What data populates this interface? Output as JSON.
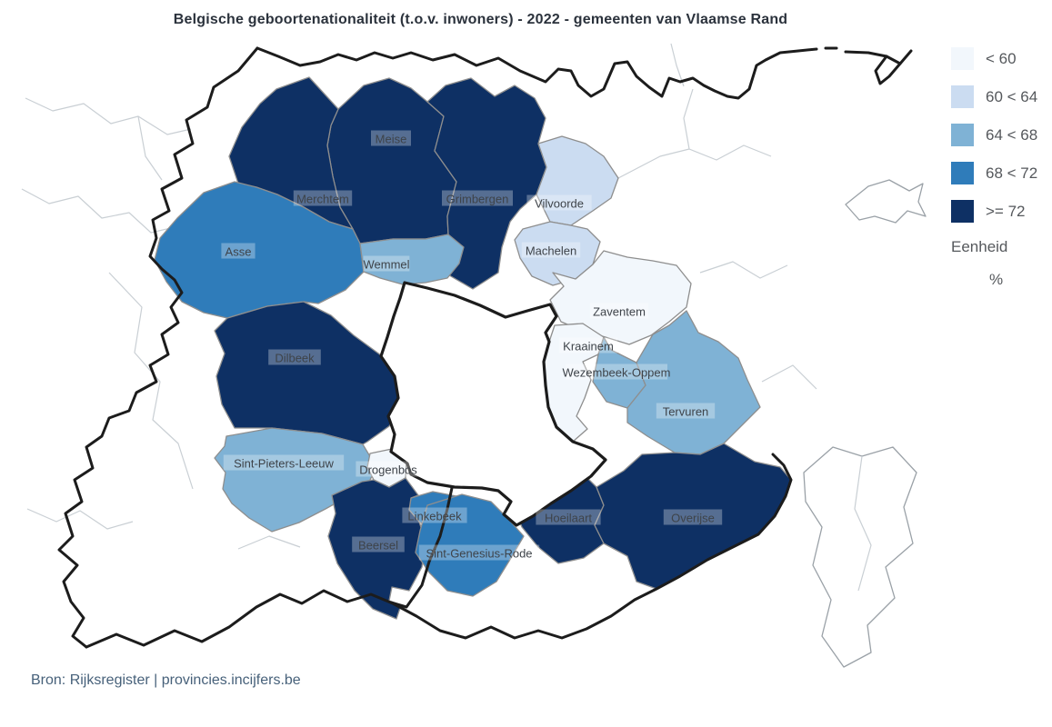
{
  "title": "Belgische geboortenationaliteit (t.o.v. inwoners) - 2022 - gemeenten van Vlaamse Rand",
  "source": "Bron: Rijksregister | provincies.incijfers.be",
  "legend": {
    "unit_label": "Eenheid",
    "unit": "%",
    "classes": [
      {
        "label": "< 60",
        "color": "#f2f7fc"
      },
      {
        "label": "60 < 64",
        "color": "#cbdcf1"
      },
      {
        "label": "64 < 68",
        "color": "#7fb2d5"
      },
      {
        "label": "68 < 72",
        "color": "#2f7cba"
      },
      {
        "label": ">= 72",
        "color": "#0e3064"
      }
    ]
  },
  "chart_data": {
    "type": "choropleth",
    "title": "Belgische geboortenationaliteit (t.o.v. inwoners) - 2022 - gemeenten van Vlaamse Rand",
    "unit": "%",
    "year": "2022",
    "bins": [
      "< 60",
      "60 < 64",
      "64 < 68",
      "68 < 72",
      ">= 72"
    ],
    "legend_position": "top-right",
    "regions": [
      {
        "id": "meise",
        "name": "Meise",
        "class": ">= 72"
      },
      {
        "id": "merchtem",
        "name": "Merchtem",
        "class": ">= 72"
      },
      {
        "id": "grimbergen",
        "name": "Grimbergen",
        "class": ">= 72"
      },
      {
        "id": "vilvoorde",
        "name": "Vilvoorde",
        "class": "60 < 64"
      },
      {
        "id": "machelen",
        "name": "Machelen",
        "class": "60 < 64"
      },
      {
        "id": "asse",
        "name": "Asse",
        "class": "68 < 72"
      },
      {
        "id": "wemmel",
        "name": "Wemmel",
        "class": "64 < 68"
      },
      {
        "id": "zaventem",
        "name": "Zaventem",
        "class": "< 60"
      },
      {
        "id": "kraainem",
        "name": "Kraainem",
        "class": "< 60"
      },
      {
        "id": "wezembeek",
        "name": "Wezembeek-Oppem",
        "class": "64 < 68"
      },
      {
        "id": "tervuren",
        "name": "Tervuren",
        "class": "64 < 68"
      },
      {
        "id": "dilbeek",
        "name": "Dilbeek",
        "class": ">= 72"
      },
      {
        "id": "spl",
        "name": "Sint-Pieters-Leeuw",
        "class": "64 < 68"
      },
      {
        "id": "drogenbos",
        "name": "Drogenbos",
        "class": "< 60"
      },
      {
        "id": "linkebeek",
        "name": "Linkebeek",
        "class": "68 < 72"
      },
      {
        "id": "beersel",
        "name": "Beersel",
        "class": ">= 72"
      },
      {
        "id": "rode",
        "name": "Sint-Genesius-Rode",
        "class": "68 < 72"
      },
      {
        "id": "hoeilaart",
        "name": "Hoeilaart",
        "class": ">= 72"
      },
      {
        "id": "overijse",
        "name": "Overijse",
        "class": ">= 72"
      }
    ]
  }
}
